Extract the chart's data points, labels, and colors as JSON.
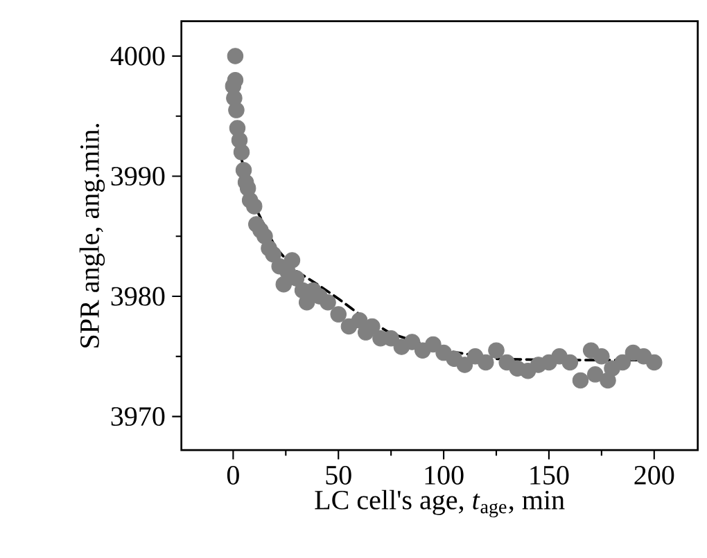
{
  "chart_data": {
    "type": "scatter",
    "xlabel": "LC cell's age, *t*$_{age}$, min",
    "ylabel": "SPR angle, ang.min.",
    "xlim": [
      -24.6,
      220.7
    ],
    "ylim": [
      3967.2,
      4002.9
    ],
    "xticks": [
      0,
      50,
      100,
      150,
      200
    ],
    "yticks": [
      3970,
      3980,
      3990,
      4000
    ],
    "grid": false,
    "series": [
      {
        "color": "#808080",
        "marker": "circle",
        "x": [
          1,
          0,
          1,
          0.5,
          1.5,
          2,
          3,
          4,
          5,
          6,
          7,
          8,
          10,
          11,
          13,
          15,
          17,
          19,
          22,
          24,
          26,
          28,
          30,
          33,
          35,
          38,
          41,
          45,
          50,
          55,
          60,
          63,
          66,
          70,
          75,
          80,
          85,
          90,
          95,
          100,
          105,
          110,
          115,
          120,
          125,
          130,
          135,
          140,
          145,
          150,
          155,
          160,
          165,
          170,
          172,
          175,
          178,
          180,
          185,
          190,
          195,
          200
        ],
        "values": [
          4000,
          3997.5,
          3998,
          3996.5,
          3995.5,
          3994,
          3993,
          3992,
          3990.5,
          3989.5,
          3989,
          3988,
          3987.5,
          3986,
          3985.5,
          3985,
          3984,
          3983.5,
          3982.5,
          3981,
          3982,
          3983,
          3981.5,
          3980.5,
          3979.5,
          3980.5,
          3980,
          3979.5,
          3978.5,
          3977.5,
          3978,
          3977,
          3977.5,
          3976.5,
          3976.5,
          3975.8,
          3976.2,
          3975.5,
          3976,
          3975.3,
          3974.8,
          3974.3,
          3975,
          3974.5,
          3975.5,
          3974.5,
          3974,
          3973.8,
          3974.3,
          3974.5,
          3975,
          3974.5,
          3973,
          3975.5,
          3973.5,
          3975,
          3973,
          3974,
          3974.5,
          3975.3,
          3975,
          3974.5
        ]
      },
      {
        "type": "line",
        "color": "#000000",
        "line_style": "dashed",
        "x": [
          0,
          5,
          10,
          20,
          30,
          40,
          50,
          60,
          75,
          100,
          125,
          150,
          175,
          200
        ],
        "values": [
          3994.3,
          3990.7,
          3987.6,
          3984.1,
          3982.1,
          3981,
          3979.8,
          3978.5,
          3976.9,
          3975.5,
          3974.8,
          3974.7,
          3974.7,
          3974.7
        ]
      }
    ]
  }
}
